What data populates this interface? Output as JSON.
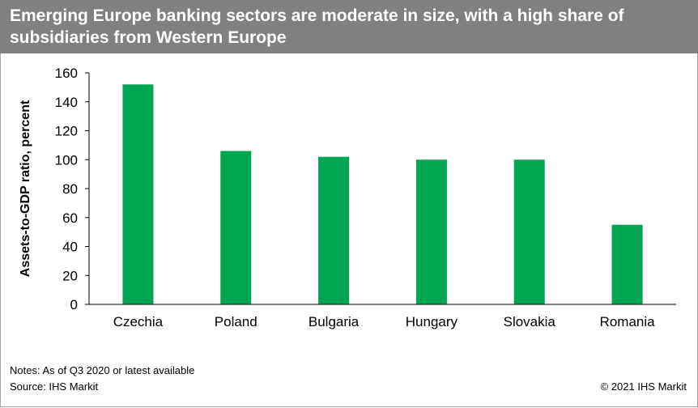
{
  "header": {
    "title": "Emerging Europe banking sectors are moderate in size, with a high share of subsidiaries from Western Europe"
  },
  "chart_data": {
    "type": "bar",
    "title": "Emerging Europe banking sectors are moderate in size, with a high share of subsidiaries from Western Europe",
    "categories": [
      "Czechia",
      "Poland",
      "Bulgaria",
      "Hungary",
      "Slovakia",
      "Romania"
    ],
    "values": [
      152,
      106,
      102,
      100,
      100,
      55
    ],
    "ylabel": "Assets-to-GDP ratio, percent",
    "xlabel": "",
    "ylim": [
      0,
      160
    ],
    "yticks": [
      "0",
      "20",
      "40",
      "60",
      "80",
      "100",
      "120",
      "140",
      "160"
    ],
    "grid": false,
    "legend": "none",
    "bar_color": "#00a651"
  },
  "footer": {
    "notes": "Notes: As of Q3 2020 or latest available",
    "source": "Source: IHS Markit",
    "copyright": "© 2021 IHS Markit"
  }
}
